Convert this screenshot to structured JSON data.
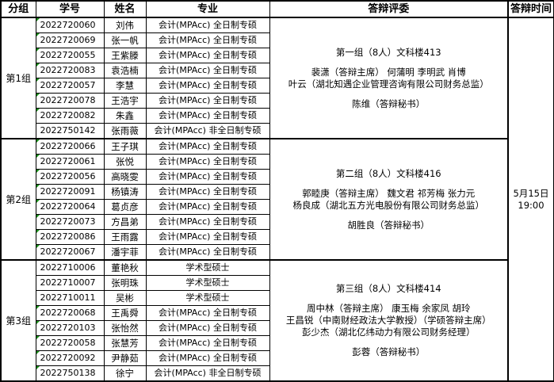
{
  "headers": {
    "group": "分组",
    "id": "学号",
    "name": "姓名",
    "major": "专业",
    "panel": "答辩评委",
    "time": "答辩时间"
  },
  "time": {
    "date": "5月15日",
    "clock": "19:00"
  },
  "groups": [
    {
      "label": "第1组",
      "panel": {
        "title": "第一组（8人）文科楼413",
        "lines": [
          "裴潇（答辩主席） 何蒲明 李明武 肖博",
          "叶云（湖北知遇企业管理咨询有限公司财务总监）"
        ],
        "secretary": "陈维（答辩秘书）"
      },
      "students": [
        {
          "id": "2022720060",
          "name": "刘伟",
          "major": "会计(MPAcc) 全日制专硕",
          "mark": true
        },
        {
          "id": "2022720069",
          "name": "张一帆",
          "major": "会计(MPAcc) 全日制专硕",
          "mark": true
        },
        {
          "id": "2022720055",
          "name": "王紫滕",
          "major": "会计(MPAcc) 全日制专硕",
          "mark": true
        },
        {
          "id": "2022720083",
          "name": "袁浩楠",
          "major": "会计(MPAcc) 全日制专硕",
          "mark": true
        },
        {
          "id": "2022720057",
          "name": "李慧",
          "major": "会计(MPAcc) 全日制专硕",
          "mark": true
        },
        {
          "id": "2022720078",
          "name": "王浩宇",
          "major": "会计(MPAcc) 全日制专硕",
          "mark": true
        },
        {
          "id": "2022720082",
          "name": "朱鑫",
          "major": "会计(MPAcc) 全日制专硕",
          "mark": true
        },
        {
          "id": "2022750142",
          "name": "张雨薇",
          "major": "会计(MPAcc) 非全日制专硕",
          "mark": false
        }
      ]
    },
    {
      "label": "第2组",
      "panel": {
        "title": "第二组（8人）文科楼416",
        "lines": [
          "郭睦庚（答辩主席） 魏文君 祁芳梅 张力元",
          "杨良成（湖北五方光电股份有限公司财务总监）"
        ],
        "secretary": "胡胜良（答辩秘书）"
      },
      "students": [
        {
          "id": "2022720066",
          "name": "王子琪",
          "major": "会计(MPAcc) 全日制专硕",
          "mark": true
        },
        {
          "id": "2022720061",
          "name": "张悦",
          "major": "会计(MPAcc) 全日制专硕",
          "mark": true
        },
        {
          "id": "2022720056",
          "name": "高晓雯",
          "major": "会计(MPAcc) 全日制专硕",
          "mark": true
        },
        {
          "id": "2022720091",
          "name": "杨镇涛",
          "major": "会计(MPAcc) 全日制专硕",
          "mark": true
        },
        {
          "id": "2022720064",
          "name": "葛贞彦",
          "major": "会计(MPAcc) 全日制专硕",
          "mark": true
        },
        {
          "id": "2022720073",
          "name": "方昌弟",
          "major": "会计(MPAcc) 全日制专硕",
          "mark": true
        },
        {
          "id": "2022720086",
          "name": "王雨露",
          "major": "会计(MPAcc) 全日制专硕",
          "mark": true
        },
        {
          "id": "2022720067",
          "name": "潘宇菲",
          "major": "会计(MPAcc) 全日制专硕",
          "mark": true
        }
      ]
    },
    {
      "label": "第3组",
      "panel": {
        "title": "第三组（8人）文科楼414",
        "lines": [
          "周中林（答辩主席） 康玉梅 余家凤 胡玲",
          "王昌锐（中南财经政法大学教授）（学硕答辩主席）",
          "彭少杰（湖北亿纬动力有限公司财务经理）"
        ],
        "secretary": "彭蓉（答辩秘书）"
      },
      "students": [
        {
          "id": "2022710006",
          "name": "董艳秋",
          "major": "学术型硕士",
          "mark": false
        },
        {
          "id": "2022710007",
          "name": "张明珠",
          "major": "学术型硕士",
          "mark": false
        },
        {
          "id": "2022710011",
          "name": "吴彬",
          "major": "学术型硕士",
          "mark": false
        },
        {
          "id": "2022720068",
          "name": "王禹舜",
          "major": "会计(MPAcc) 全日制专硕",
          "mark": true
        },
        {
          "id": "2022720103",
          "name": "张怡然",
          "major": "会计(MPAcc) 全日制专硕",
          "mark": true
        },
        {
          "id": "2022720058",
          "name": "张慧芳",
          "major": "会计(MPAcc) 全日制专硕",
          "mark": true
        },
        {
          "id": "2022720092",
          "name": "尹静茹",
          "major": "会计(MPAcc) 全日制专硕",
          "mark": true
        },
        {
          "id": "2022750138",
          "name": "徐宁",
          "major": "会计(MPAcc) 非全日制专硕",
          "mark": true
        }
      ]
    }
  ]
}
